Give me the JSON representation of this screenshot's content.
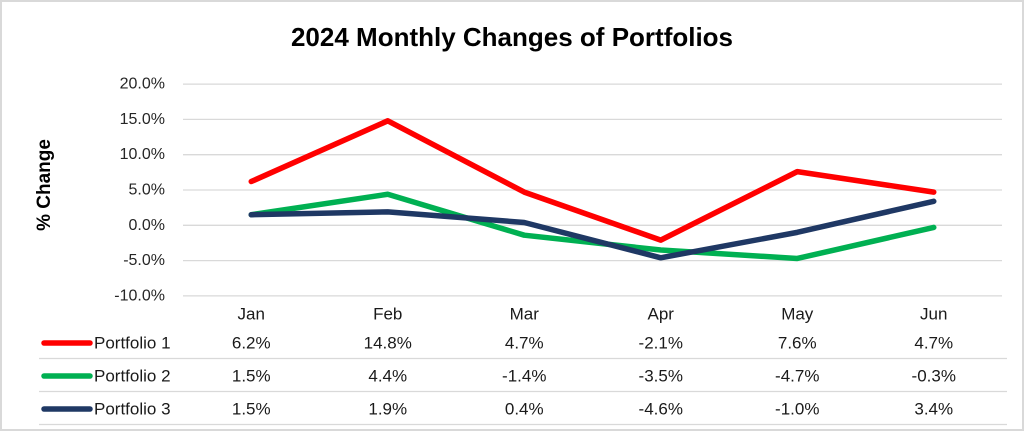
{
  "chart_data": {
    "type": "line",
    "title": "2024 Monthly Changes of Portfolios",
    "ylabel": "% Change",
    "xlabel": "",
    "categories": [
      "Jan",
      "Feb",
      "Mar",
      "Apr",
      "May",
      "Jun"
    ],
    "series": [
      {
        "name": "Portfolio 1",
        "color": "#FF0000",
        "values": [
          6.2,
          14.8,
          4.7,
          -2.1,
          7.6,
          4.7
        ]
      },
      {
        "name": "Portfolio 2",
        "color": "#00B052",
        "values": [
          1.5,
          4.4,
          -1.4,
          -3.5,
          -4.7,
          -0.3
        ]
      },
      {
        "name": "Portfolio 3",
        "color": "#1F3864",
        "values": [
          1.5,
          1.9,
          0.4,
          -4.6,
          -1.0,
          3.4
        ]
      }
    ],
    "y_axis": {
      "min": -10,
      "max": 20,
      "step": 5,
      "tick_labels": [
        "20.0%",
        "15.0%",
        "10.0%",
        "5.0%",
        "0.0%",
        "-5.0%",
        "-10.0%"
      ]
    },
    "grid": "horizontal",
    "legend_position": "table-left",
    "value_format": "percent_1dp",
    "colors": {
      "gridline": "#D9D9D9",
      "separator": "#D9D9D9",
      "tick_text": "#262626",
      "table_text": "#1a1a1a",
      "title_text": "#000000"
    }
  }
}
